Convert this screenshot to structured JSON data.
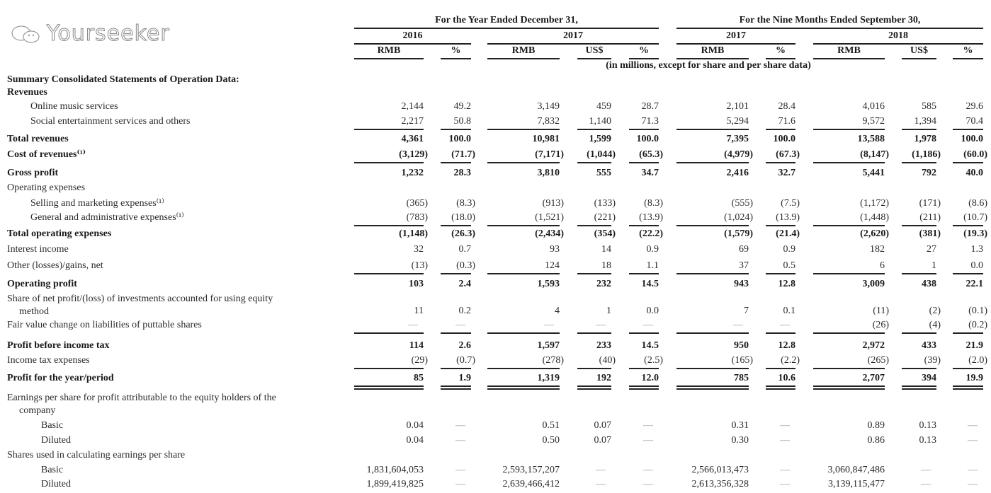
{
  "header": {
    "group_year": "For the Year Ended December 31,",
    "group_nine": "For the Nine Months Ended September 30,",
    "years": [
      "2016",
      "2017",
      "2017",
      "2018"
    ],
    "currencies": [
      "RMB",
      "%",
      "RMB",
      "US$",
      "%",
      "RMB",
      "%",
      "RMB",
      "US$",
      "%"
    ],
    "note": "(in millions, except for share and per share data)"
  },
  "rows": [
    {
      "label": "Summary Consolidated Statements of Operation Data:",
      "style": "bold",
      "values": []
    },
    {
      "label": "Revenues",
      "style": "bold",
      "values": []
    },
    {
      "label": "Online music services",
      "style": "indent",
      "values": [
        "2,144",
        "49.2",
        "3,149",
        "459",
        "28.7",
        "2,101",
        "28.4",
        "4,016",
        "585",
        "29.6"
      ]
    },
    {
      "label": "Social entertainment services and others",
      "style": "indent",
      "rule": "single",
      "values": [
        "2,217",
        "50.8",
        "7,832",
        "1,140",
        "71.3",
        "5,294",
        "71.6",
        "9,572",
        "1,394",
        "70.4"
      ]
    },
    {
      "label": "Total revenues",
      "style": "bold",
      "values": [
        "4,361",
        "100.0",
        "10,981",
        "1,599",
        "100.0",
        "7,395",
        "100.0",
        "13,588",
        "1,978",
        "100.0"
      ]
    },
    {
      "label": "Cost of revenues⁽¹⁾",
      "style": "bold",
      "rule": "single",
      "values": [
        "(3,129)",
        "(71.7)",
        "(7,171)",
        "(1,044)",
        "(65.3)",
        "(4,979)",
        "(67.3)",
        "(8,147)",
        "(1,186)",
        "(60.0)"
      ]
    },
    {
      "label": "Gross profit",
      "style": "bold",
      "values": [
        "1,232",
        "28.3",
        "3,810",
        "555",
        "34.7",
        "2,416",
        "32.7",
        "5,441",
        "792",
        "40.0"
      ]
    },
    {
      "label": "Operating expenses",
      "style": "plain",
      "values": []
    },
    {
      "label": "Selling and marketing expenses⁽¹⁾",
      "style": "indent",
      "values": [
        "(365)",
        "(8.3)",
        "(913)",
        "(133)",
        "(8.3)",
        "(555)",
        "(7.5)",
        "(1,172)",
        "(171)",
        "(8.6)"
      ]
    },
    {
      "label": "General and administrative expenses⁽¹⁾",
      "style": "indent",
      "rule": "single",
      "values": [
        "(783)",
        "(18.0)",
        "(1,521)",
        "(221)",
        "(13.9)",
        "(1,024)",
        "(13.9)",
        "(1,448)",
        "(211)",
        "(10.7)"
      ]
    },
    {
      "label": "Total operating expenses",
      "style": "bold",
      "values": [
        "(1,148)",
        "(26.3)",
        "(2,434)",
        "(354)",
        "(22.2)",
        "(1,579)",
        "(21.4)",
        "(2,620)",
        "(381)",
        "(19.3)"
      ]
    },
    {
      "label": "Interest income",
      "style": "plain",
      "values": [
        "32",
        "0.7",
        "93",
        "14",
        "0.9",
        "69",
        "0.9",
        "182",
        "27",
        "1.3"
      ]
    },
    {
      "label": "Other (losses)/gains, net",
      "style": "plain",
      "rule": "single",
      "values": [
        "(13)",
        "(0.3)",
        "124",
        "18",
        "1.1",
        "37",
        "0.5",
        "6",
        "1",
        "0.0"
      ]
    },
    {
      "label": "Operating profit",
      "style": "bold",
      "values": [
        "103",
        "2.4",
        "1,593",
        "232",
        "14.5",
        "943",
        "12.8",
        "3,009",
        "438",
        "22.1"
      ]
    },
    {
      "label": "Share of net profit/(loss) of investments accounted for using equity",
      "label2": "method",
      "style": "plain",
      "values": [
        "11",
        "0.2",
        "4",
        "1",
        "0.0",
        "7",
        "0.1",
        "(11)",
        "(2)",
        "(0.1)"
      ]
    },
    {
      "label": "Fair value change on liabilities of puttable shares",
      "style": "plain",
      "rule": "single",
      "values": [
        "—",
        "—",
        "—",
        "—",
        "—",
        "—",
        "—",
        "(26)",
        "(4)",
        "(0.2)"
      ]
    },
    {
      "label": "Profit before income tax",
      "style": "bold",
      "values": [
        "114",
        "2.6",
        "1,597",
        "233",
        "14.5",
        "950",
        "12.8",
        "2,972",
        "433",
        "21.9"
      ]
    },
    {
      "label": "Income tax expenses",
      "style": "plain",
      "rule": "single",
      "values": [
        "(29)",
        "(0.7)",
        "(278)",
        "(40)",
        "(2.5)",
        "(165)",
        "(2.2)",
        "(265)",
        "(39)",
        "(2.0)"
      ]
    },
    {
      "label": "Profit for the year/period",
      "style": "bold",
      "rule": "double",
      "values": [
        "85",
        "1.9",
        "1,319",
        "192",
        "12.0",
        "785",
        "10.6",
        "2,707",
        "394",
        "19.9"
      ]
    },
    {
      "label": "Earnings per share for profit attributable to the equity holders of the",
      "label2": "company",
      "style": "plain",
      "values": []
    },
    {
      "label": "Basic",
      "style": "indent2",
      "values": [
        "0.04",
        "—",
        "0.51",
        "0.07",
        "—",
        "0.31",
        "—",
        "0.89",
        "0.13",
        "—"
      ]
    },
    {
      "label": "Diluted",
      "style": "indent2",
      "values": [
        "0.04",
        "—",
        "0.50",
        "0.07",
        "—",
        "0.30",
        "—",
        "0.86",
        "0.13",
        "—"
      ]
    },
    {
      "label": "Shares used in calculating earnings per share",
      "style": "plain",
      "values": []
    },
    {
      "label": "Basic",
      "style": "indent2",
      "values": [
        "1,831,604,053",
        "—",
        "2,593,157,207",
        "—",
        "—",
        "2,566,013,473",
        "—",
        "3,060,847,486",
        "—",
        "—"
      ]
    },
    {
      "label": "Diluted",
      "style": "indent2",
      "values": [
        "1,899,419,825",
        "—",
        "2,639,466,412",
        "—",
        "—",
        "2,613,356,328",
        "—",
        "3,139,115,477",
        "—",
        "—"
      ]
    }
  ],
  "watermark": "Yourseeker"
}
